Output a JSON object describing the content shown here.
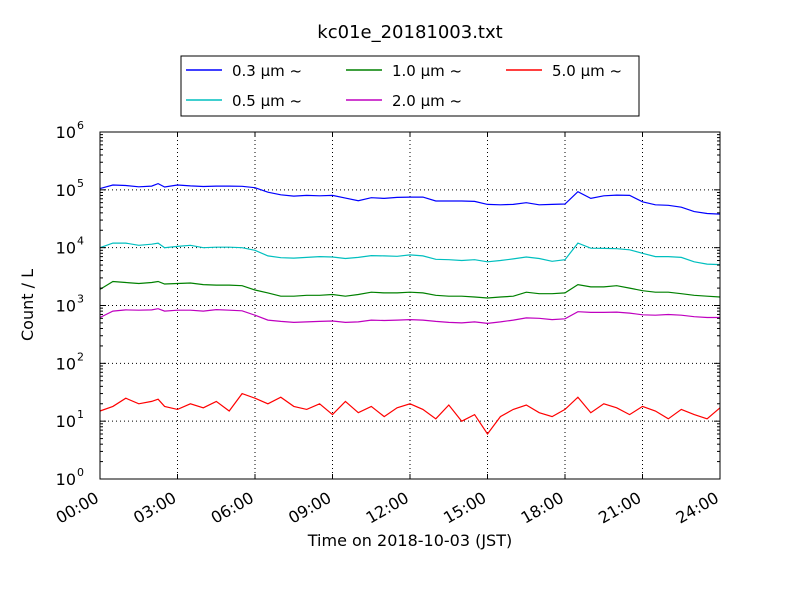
{
  "chart_data": {
    "type": "line",
    "title": "kc01e_20181003.txt",
    "xlabel": "Time on 2018-10-03 (JST)",
    "ylabel": "Count / L",
    "yscale": "log",
    "ylim": [
      1,
      1000000
    ],
    "xlim": [
      0,
      24
    ],
    "grid": true,
    "legend_position": "top-center",
    "x_ticks": [
      "00:00",
      "03:00",
      "06:00",
      "09:00",
      "12:00",
      "15:00",
      "18:00",
      "21:00",
      "24:00"
    ],
    "y_ticks": [
      {
        "base": "10",
        "exp": "0"
      },
      {
        "base": "10",
        "exp": "1"
      },
      {
        "base": "10",
        "exp": "2"
      },
      {
        "base": "10",
        "exp": "3"
      },
      {
        "base": "10",
        "exp": "4"
      },
      {
        "base": "10",
        "exp": "5"
      },
      {
        "base": "10",
        "exp": "6"
      }
    ],
    "x_hours": [
      0,
      0.5,
      1,
      1.5,
      2,
      2.25,
      2.5,
      3,
      3.5,
      4,
      4.5,
      5,
      5.5,
      6,
      6.5,
      7,
      7.5,
      8,
      8.5,
      9,
      9.5,
      10,
      10.5,
      11,
      11.5,
      12,
      12.5,
      13,
      13.5,
      14,
      14.5,
      15,
      15.5,
      16,
      16.5,
      17,
      17.5,
      18,
      18.5,
      19,
      19.5,
      20,
      20.5,
      21,
      21.5,
      22,
      22.5,
      23,
      23.5,
      24
    ],
    "series": [
      {
        "name": "0.3 µm ~",
        "color": "#0000ff",
        "values": [
          105000,
          121000,
          119000,
          113000,
          116000,
          128000,
          112000,
          121000,
          117000,
          114000,
          116000,
          116000,
          115000,
          109000,
          91000,
          82000,
          78000,
          80000,
          79000,
          80000,
          72000,
          65000,
          73000,
          71000,
          74000,
          75000,
          75000,
          64000,
          64000,
          64000,
          63000,
          56000,
          55000,
          56000,
          60000,
          55000,
          56000,
          57000,
          93000,
          71000,
          79000,
          81000,
          80000,
          62000,
          55000,
          54000,
          50000,
          42000,
          39000,
          38000
        ]
      },
      {
        "name": "0.5 µm ~",
        "color": "#00bfbf",
        "values": [
          10000,
          12000,
          12000,
          11000,
          11500,
          12000,
          10000,
          10500,
          11000,
          10000,
          10200,
          10200,
          10000,
          9000,
          7200,
          6700,
          6600,
          6800,
          7000,
          6900,
          6500,
          6800,
          7300,
          7200,
          7100,
          7500,
          7200,
          6300,
          6200,
          6000,
          6200,
          5700,
          6000,
          6400,
          6900,
          6500,
          5800,
          6200,
          12000,
          9800,
          9700,
          9600,
          9200,
          8000,
          7000,
          7000,
          6800,
          5700,
          5200,
          5100
        ]
      },
      {
        "name": "1.0 µm ~",
        "color": "#008000",
        "values": [
          1900,
          2600,
          2500,
          2400,
          2500,
          2600,
          2350,
          2400,
          2450,
          2300,
          2250,
          2250,
          2200,
          1850,
          1650,
          1450,
          1450,
          1500,
          1500,
          1550,
          1450,
          1550,
          1700,
          1650,
          1650,
          1700,
          1650,
          1500,
          1450,
          1450,
          1400,
          1350,
          1400,
          1450,
          1700,
          1600,
          1600,
          1650,
          2300,
          2100,
          2100,
          2200,
          2000,
          1800,
          1700,
          1700,
          1600,
          1500,
          1450,
          1400
        ]
      },
      {
        "name": "2.0 µm ~",
        "color": "#bf00bf",
        "values": [
          620,
          800,
          840,
          830,
          840,
          880,
          800,
          830,
          830,
          800,
          850,
          830,
          810,
          680,
          560,
          530,
          510,
          520,
          530,
          540,
          510,
          520,
          560,
          550,
          560,
          570,
          560,
          530,
          510,
          500,
          520,
          490,
          520,
          560,
          610,
          600,
          570,
          590,
          780,
          760,
          760,
          770,
          740,
          690,
          680,
          700,
          680,
          640,
          620,
          620
        ]
      },
      {
        "name": "5.0 µm ~",
        "color": "#ff0000",
        "values": [
          15,
          18,
          25,
          20,
          22,
          24,
          18,
          16,
          20,
          17,
          22,
          15,
          30,
          25,
          20,
          26,
          18,
          16,
          20,
          13,
          22,
          14,
          18,
          12,
          17,
          20,
          16,
          11,
          19,
          10,
          13,
          6,
          12,
          16,
          19,
          14,
          12,
          16,
          26,
          14,
          20,
          17,
          13,
          18,
          15,
          11,
          16,
          13,
          11,
          17
        ]
      }
    ]
  }
}
